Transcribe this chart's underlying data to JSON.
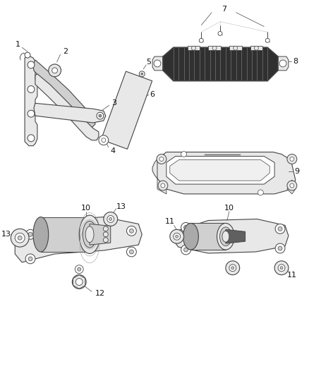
{
  "background_color": "#ffffff",
  "line_color": "#444444",
  "light_gray": "#cccccc",
  "mid_gray": "#999999",
  "dark_gray": "#666666",
  "fill_light": "#e8e8e8",
  "fill_mid": "#d0d0d0",
  "fill_dark": "#aaaaaa",
  "text_color": "#111111",
  "label_fontsize": 7,
  "figsize": [
    4.38,
    5.33
  ],
  "dpi": 100
}
